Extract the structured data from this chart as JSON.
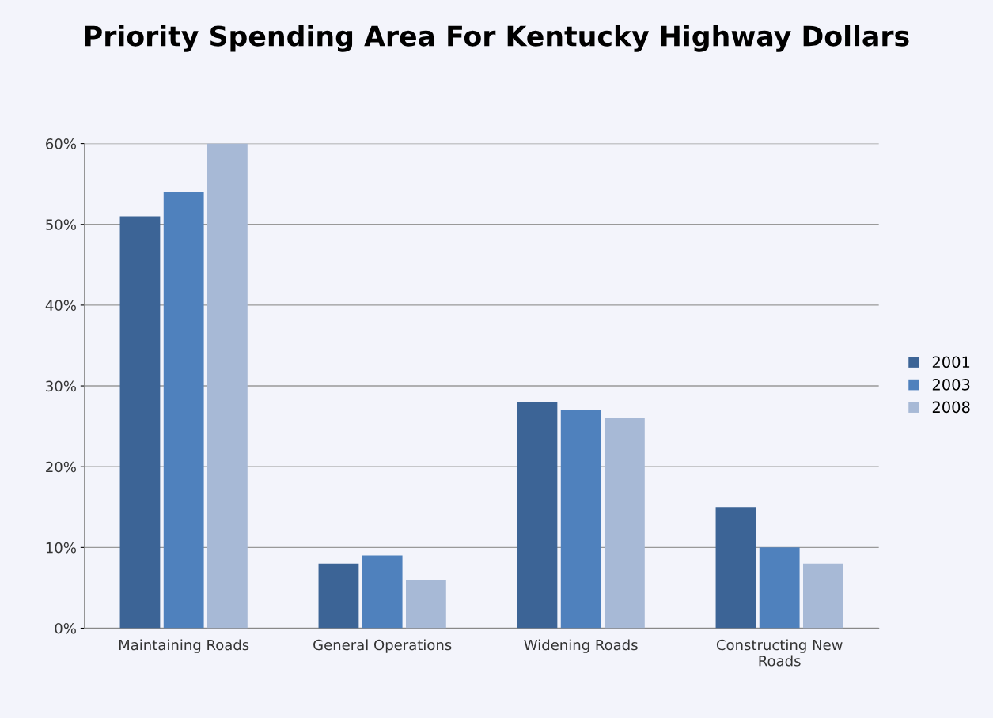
{
  "chart_data": {
    "type": "bar",
    "title": "Priority Spending Area For Kentucky Highway Dollars",
    "categories": [
      "Maintaining Roads",
      "General Operations",
      "Widening Roads",
      "Constructing New\nRoads"
    ],
    "series": [
      {
        "name": "2001",
        "color": "#3c6496",
        "values": [
          51,
          8,
          28,
          15
        ]
      },
      {
        "name": "2003",
        "color": "#4f81bd",
        "values": [
          54,
          9,
          27,
          10
        ]
      },
      {
        "name": "2008",
        "color": "#a7b9d6",
        "values": [
          60,
          6,
          26,
          8
        ]
      }
    ],
    "ylim": [
      0,
      60
    ],
    "yticks": [
      {
        "value": 0,
        "label": "0%"
      },
      {
        "value": 10,
        "label": "10%"
      },
      {
        "value": 20,
        "label": "20%"
      },
      {
        "value": 30,
        "label": "30%"
      },
      {
        "value": 40,
        "label": "40%"
      },
      {
        "value": 50,
        "label": "50%"
      },
      {
        "value": 60,
        "label": "60%"
      }
    ],
    "grid": "y",
    "legend": "right"
  }
}
